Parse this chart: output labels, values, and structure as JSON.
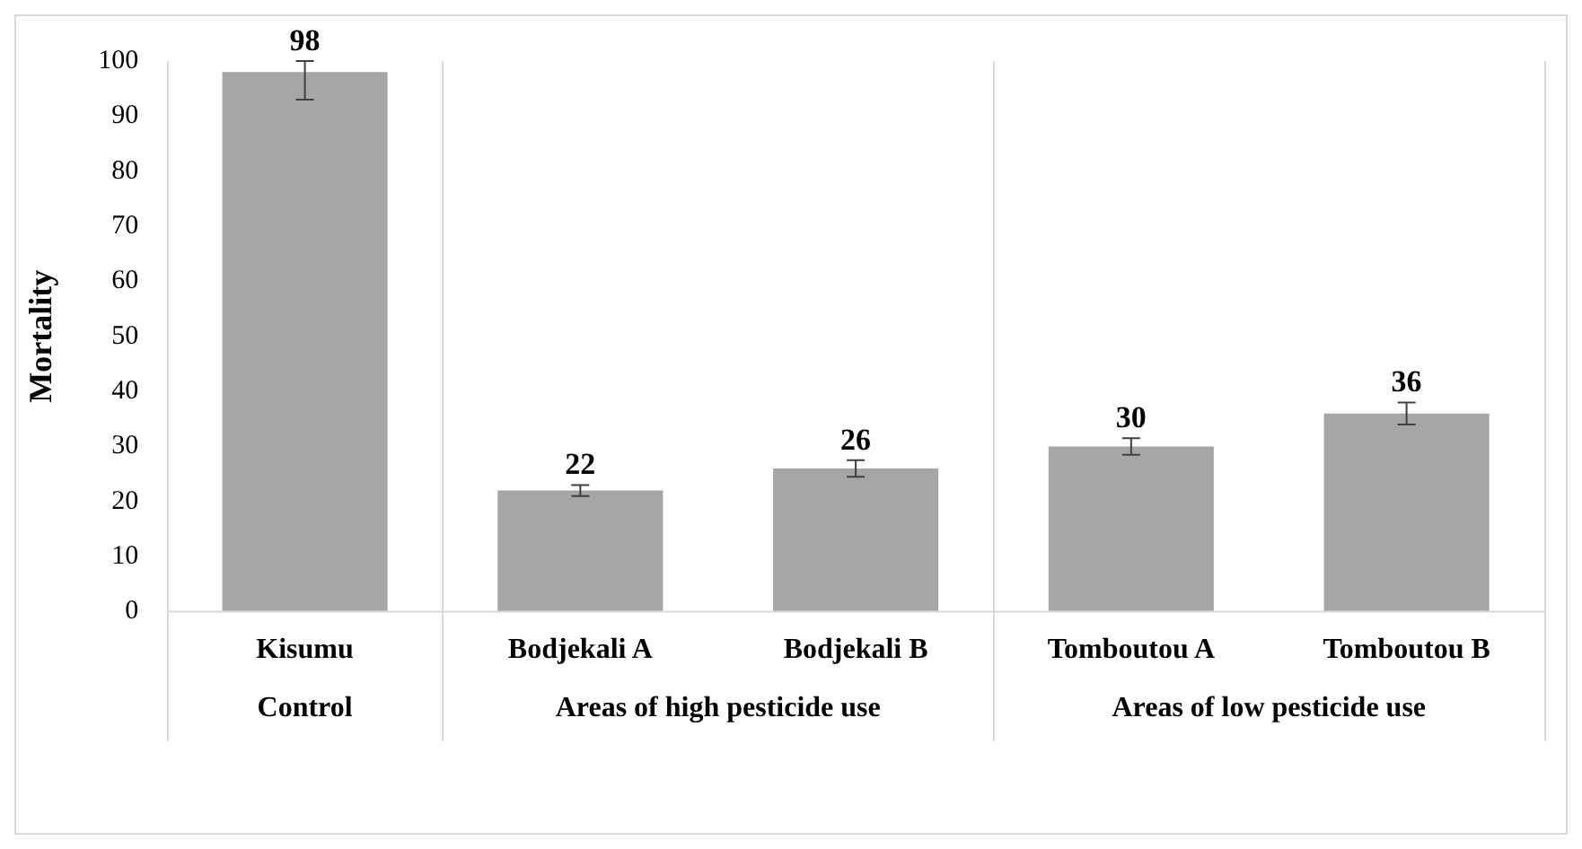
{
  "chart_data": {
    "type": "bar",
    "ylabel": "Mortality",
    "categories": [
      "Kisumu",
      "Bodjekali A",
      "Bodjekali B",
      "Tomboutou A",
      "Tomboutou B"
    ],
    "values": [
      98,
      22,
      26,
      30,
      36
    ],
    "errors": [
      [
        93,
        100
      ],
      1,
      1.5,
      1.5,
      2
    ],
    "color": "#a6a6a6",
    "ylim": [
      0,
      100
    ],
    "yticks": [
      0,
      10,
      20,
      30,
      40,
      50,
      60,
      70,
      80,
      90,
      100
    ],
    "data_labels": true,
    "annotations": [
      "Control",
      "Areas of high pesticide use",
      "Areas of low pesticide use"
    ]
  }
}
